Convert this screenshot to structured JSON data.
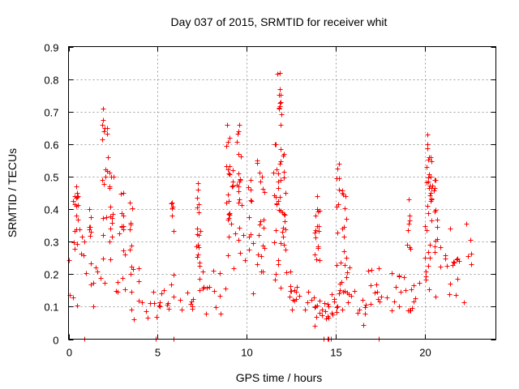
{
  "chart_data": {
    "type": "scatter",
    "title": "Day 037 of 2015, SRMTID for receiver whit",
    "xlabel": "GPS time / hours",
    "ylabel": "SRMTID / TECUs",
    "xlim": [
      0,
      24
    ],
    "ylim": [
      0,
      0.9
    ],
    "xticks": [
      0,
      5,
      10,
      15,
      20
    ],
    "xtick_labels": [
      "0",
      "5",
      "10",
      "15",
      "20"
    ],
    "yticks": [
      0,
      0.1,
      0.2,
      0.3,
      0.4,
      0.5,
      0.6,
      0.7,
      0.8,
      0.9
    ],
    "ytick_labels": [
      "0",
      "0.1",
      "0.2",
      "0.3",
      "0.4",
      "0.5",
      "0.6",
      "0.7",
      "0.8",
      "0.9"
    ],
    "grid": true,
    "marker": "+",
    "color": "#ff0000",
    "x_extent": [
      0,
      22.7
    ],
    "baseline_profile": [
      [
        0.0,
        0.2
      ],
      [
        0.5,
        0.24
      ],
      [
        1.0,
        0.17
      ],
      [
        1.5,
        0.16
      ],
      [
        2.0,
        0.19
      ],
      [
        2.5,
        0.24
      ],
      [
        3.0,
        0.24
      ],
      [
        3.5,
        0.18
      ],
      [
        4.0,
        0.12
      ],
      [
        4.5,
        0.08
      ],
      [
        5.0,
        0.1
      ],
      [
        5.5,
        0.11
      ],
      [
        6.0,
        0.12
      ],
      [
        6.5,
        0.1
      ],
      [
        7.0,
        0.12
      ],
      [
        7.5,
        0.15
      ],
      [
        8.0,
        0.13
      ],
      [
        8.5,
        0.13
      ],
      [
        9.0,
        0.17
      ],
      [
        9.5,
        0.24
      ],
      [
        10.0,
        0.27
      ],
      [
        10.5,
        0.24
      ],
      [
        11.0,
        0.2
      ],
      [
        11.5,
        0.22
      ],
      [
        12.0,
        0.18
      ],
      [
        12.5,
        0.12
      ],
      [
        13.0,
        0.1
      ],
      [
        13.5,
        0.11
      ],
      [
        14.0,
        0.1
      ],
      [
        14.5,
        0.07
      ],
      [
        15.0,
        0.1
      ],
      [
        15.5,
        0.14
      ],
      [
        16.0,
        0.15
      ],
      [
        16.5,
        0.13
      ],
      [
        17.0,
        0.12
      ],
      [
        17.5,
        0.14
      ],
      [
        18.0,
        0.12
      ],
      [
        18.5,
        0.12
      ],
      [
        19.0,
        0.15
      ],
      [
        19.5,
        0.14
      ],
      [
        20.0,
        0.2
      ],
      [
        20.5,
        0.26
      ],
      [
        21.0,
        0.23
      ],
      [
        21.5,
        0.2
      ],
      [
        22.0,
        0.18
      ],
      [
        22.7,
        0.2
      ]
    ],
    "spikes": [
      [
        0.35,
        0.47
      ],
      [
        0.5,
        0.45
      ],
      [
        1.2,
        0.4
      ],
      [
        2.0,
        0.71
      ],
      [
        2.1,
        0.65
      ],
      [
        2.3,
        0.56
      ],
      [
        2.4,
        0.5
      ],
      [
        3.0,
        0.45
      ],
      [
        3.5,
        0.42
      ],
      [
        5.8,
        0.42
      ],
      [
        7.2,
        0.48
      ],
      [
        7.3,
        0.46
      ],
      [
        8.9,
        0.66
      ],
      [
        8.95,
        0.62
      ],
      [
        9.1,
        0.52
      ],
      [
        9.5,
        0.66
      ],
      [
        9.6,
        0.57
      ],
      [
        10.2,
        0.49
      ],
      [
        10.7,
        0.55
      ],
      [
        10.9,
        0.5
      ],
      [
        11.6,
        0.6
      ],
      [
        11.8,
        0.82
      ],
      [
        11.85,
        0.77
      ],
      [
        11.9,
        0.73
      ],
      [
        12.0,
        0.57
      ],
      [
        12.1,
        0.45
      ],
      [
        13.9,
        0.44
      ],
      [
        14.0,
        0.4
      ],
      [
        15.1,
        0.54
      ],
      [
        15.3,
        0.46
      ],
      [
        15.5,
        0.44
      ],
      [
        19.1,
        0.43
      ],
      [
        20.1,
        0.63
      ],
      [
        20.2,
        0.6
      ],
      [
        20.3,
        0.56
      ],
      [
        20.4,
        0.5
      ],
      [
        20.6,
        0.49
      ]
    ],
    "zero_points": [
      0.9,
      4.9,
      5.9,
      14.3,
      14.55,
      14.6,
      14.75,
      17.4
    ]
  }
}
